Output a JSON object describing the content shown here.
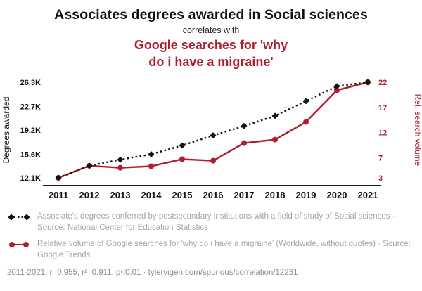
{
  "header": {
    "title": "Associates degrees awarded in Social sciences",
    "connector": "correlates with",
    "subtitle": "Google searches for 'why\ndo i have a migraine'"
  },
  "colors": {
    "series_black": "#111111",
    "accent_red": "#b01e2e",
    "legend_gray": "#a6a6a6",
    "footer_gray": "#8f8f8f"
  },
  "chart_data": {
    "type": "line",
    "categories": [
      "2011",
      "2012",
      "2013",
      "2014",
      "2015",
      "2016",
      "2017",
      "2018",
      "2019",
      "2020",
      "2021"
    ],
    "series": [
      {
        "name": "Relative volume of Google searches for 'why do i have a migraine'",
        "axis": "right",
        "color": "#b01e2e",
        "style": "solid",
        "marker": "circle",
        "values": [
          3,
          5.4,
          5.0,
          5.3,
          6.7,
          6.4,
          9.9,
          10.6,
          14.1,
          20.4,
          22
        ]
      },
      {
        "name": "Associate's degrees conferred in Social sciences (thousands)",
        "axis": "left",
        "color": "#111111",
        "style": "dotted",
        "marker": "diamond",
        "values": [
          12.1,
          13.9,
          14.8,
          15.6,
          16.9,
          18.4,
          19.8,
          21.3,
          23.5,
          25.7,
          26.3
        ]
      }
    ],
    "left_axis": {
      "label": "Degrees awarded",
      "unit": "K",
      "ticks": [
        "12.1K",
        "15.6K",
        "19.2K",
        "22.7K",
        "26.3K"
      ],
      "tick_values": [
        12.1,
        15.6,
        19.2,
        22.7,
        26.3
      ],
      "min": 12.1,
      "max": 26.3
    },
    "right_axis": {
      "label": "Rel. search volume",
      "ticks": [
        "3",
        "7",
        "12",
        "17",
        "22"
      ],
      "tick_values": [
        3,
        7,
        12,
        17,
        22
      ],
      "min": 3,
      "max": 22
    },
    "grid": false,
    "legend_position": "bottom"
  },
  "legend": [
    {
      "marker": "diamond-dotted",
      "color": "#111111",
      "text": "Associate's degrees conferred by postsecondary institutions with a field of study of Social sciences · Source: National Center for Education Statistics"
    },
    {
      "marker": "circle-solid",
      "color": "#b01e2e",
      "text": "Relative volume of Google searches for 'why do i have a migraine' (Worldwide, without quotes) · Source: Google Trends"
    }
  ],
  "footer": {
    "text": "2011-2021, r=0.955, r²=0.911, p<0.01 · tylervigen.com/spurious/correlation/12231"
  }
}
